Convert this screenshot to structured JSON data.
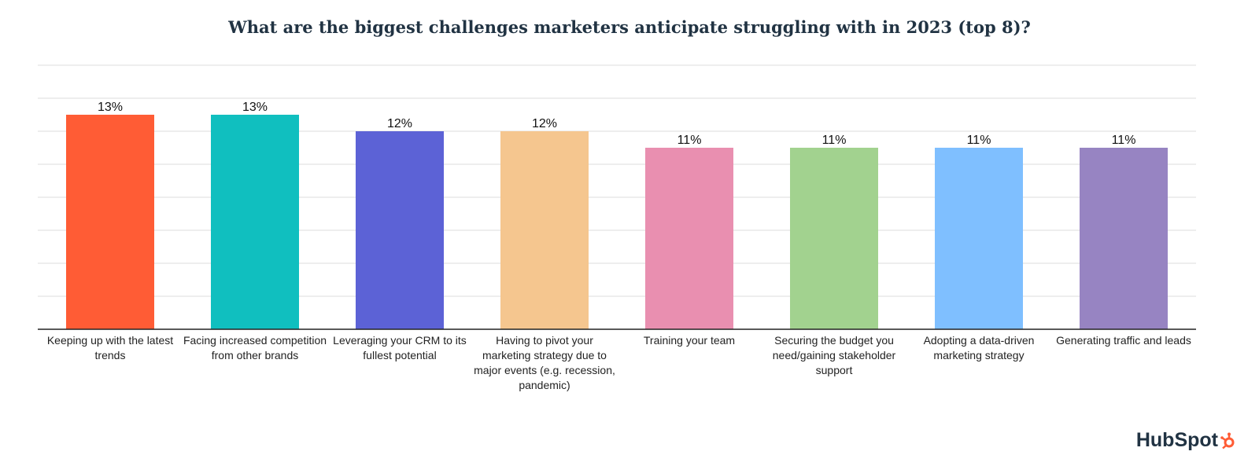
{
  "title": "What are the biggest challenges marketers anticipate struggling with in 2023 (top 8)?",
  "brand": {
    "name": "HubSpot",
    "accent": "#ff5c35"
  },
  "chart_data": {
    "type": "bar",
    "categories": [
      "Keeping up with the latest trends",
      "Facing increased competition from other brands",
      "Leveraging your CRM to its fullest potential",
      "Having to pivot your marketing strategy due to major events (e.g. recession, pandemic)",
      "Training your team",
      "Securing the budget you need/gaining stakeholder support",
      "Adopting a data-driven marketing strategy",
      "Generating traffic and leads"
    ],
    "values": [
      13,
      13,
      12,
      12,
      11,
      11,
      11,
      11
    ],
    "value_labels": [
      "13%",
      "13%",
      "12%",
      "12%",
      "11%",
      "11%",
      "11%",
      "11%"
    ],
    "colors": [
      "#ff5c35",
      "#10bfbf",
      "#5c62d6",
      "#f5c68f",
      "#e98fb0",
      "#a2d28f",
      "#7fbfff",
      "#9784c2"
    ],
    "ylim": [
      0,
      16
    ],
    "grid": true,
    "legend": "none",
    "xlabel": "",
    "ylabel": ""
  }
}
